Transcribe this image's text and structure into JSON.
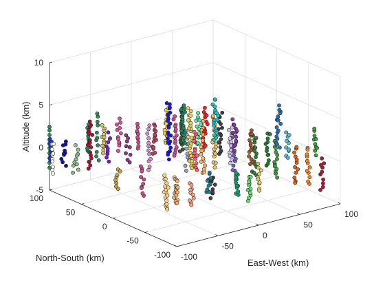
{
  "chart_data": {
    "type": "scatter3d",
    "title": "",
    "xlabel": "East-West (km)",
    "ylabel": "North-South (km)",
    "zlabel": "Altitude (km)",
    "xlim": [
      -100,
      100
    ],
    "ylim": [
      -100,
      100
    ],
    "zlim": [
      -5,
      10
    ],
    "xticks": [
      -100,
      -50,
      0,
      50,
      100
    ],
    "yticks": [
      -100,
      -50,
      0,
      50,
      100
    ],
    "zticks": [
      -5,
      0,
      5,
      10
    ],
    "grid": true,
    "box": "back-planes-only",
    "view": "matlab-default-3d",
    "marker": "filled circle with black edge",
    "note": "Each cluster is a vertical column of points, one color per cluster.",
    "clusters": [
      {
        "x": -60,
        "y": 90,
        "z": [
          -2.2,
          2.4
        ],
        "n": 10,
        "color": "#2e8b57"
      },
      {
        "x": -35,
        "y": 95,
        "z": [
          -1.5,
          1.0
        ],
        "n": 9,
        "color": "#1f3bd6"
      },
      {
        "x": -45,
        "y": 70,
        "z": [
          -2.8,
          0.8
        ],
        "n": 10,
        "color": "#ffffff"
      },
      {
        "x": -15,
        "y": 80,
        "z": [
          -2.0,
          0.8
        ],
        "n": 10,
        "color": "#1313a0"
      },
      {
        "x": -5,
        "y": 60,
        "z": [
          -2.4,
          0.6
        ],
        "n": 10,
        "color": "#8fbc8f"
      },
      {
        "x": 15,
        "y": 70,
        "z": [
          -0.5,
          2.8
        ],
        "n": 11,
        "color": "#0a9a6a"
      },
      {
        "x": 10,
        "y": 45,
        "z": [
          -1.5,
          4.0
        ],
        "n": 18,
        "color": "#b01030"
      },
      {
        "x": 25,
        "y": 60,
        "z": [
          -1.0,
          4.5
        ],
        "n": 11,
        "color": "#2e8b57"
      },
      {
        "x": 30,
        "y": 50,
        "z": [
          0.0,
          3.2
        ],
        "n": 12,
        "color": "#d4c36a"
      },
      {
        "x": 40,
        "y": 60,
        "z": [
          -1.2,
          2.0
        ],
        "n": 10,
        "color": "#7a1ed6"
      },
      {
        "x": 50,
        "y": 45,
        "z": [
          0.5,
          4.0
        ],
        "n": 12,
        "color": "#e05090"
      },
      {
        "x": 60,
        "y": 40,
        "z": [
          -1.0,
          2.5
        ],
        "n": 9,
        "color": "#8a3a8a"
      },
      {
        "x": 75,
        "y": 45,
        "z": [
          0.5,
          3.5
        ],
        "n": 10,
        "color": "#d04a88"
      },
      {
        "x": 85,
        "y": 30,
        "z": [
          -1.5,
          3.5
        ],
        "n": 12,
        "color": "#d090d0"
      },
      {
        "x": 90,
        "y": 20,
        "z": [
          0.5,
          4.0
        ],
        "n": 14,
        "color": "#c04060"
      },
      {
        "x": 105,
        "y": 15,
        "z": [
          2.0,
          6.0
        ],
        "n": 14,
        "color": "#ffd23f"
      },
      {
        "x": 115,
        "y": 10,
        "z": [
          0.5,
          5.0
        ],
        "n": 14,
        "color": "#c85090"
      },
      {
        "x": 130,
        "y": 5,
        "z": [
          -1.0,
          3.5
        ],
        "n": 10,
        "color": "#a0a0d0"
      },
      {
        "x": 100,
        "y": -10,
        "z": [
          1.0,
          7.5
        ],
        "n": 24,
        "color": "#1818e0"
      },
      {
        "x": 120,
        "y": -5,
        "z": [
          1.5,
          6.5
        ],
        "n": 18,
        "color": "#3a5a3a"
      },
      {
        "x": 135,
        "y": -15,
        "z": [
          -0.5,
          4.0
        ],
        "n": 16,
        "color": "#ff6060"
      },
      {
        "x": 150,
        "y": -10,
        "z": [
          2.0,
          6.5
        ],
        "n": 16,
        "color": "#ff2020"
      },
      {
        "x": 125,
        "y": -25,
        "z": [
          0.0,
          7.0
        ],
        "n": 26,
        "color": "#e8d050"
      },
      {
        "x": 140,
        "y": -30,
        "z": [
          -0.5,
          5.5
        ],
        "n": 20,
        "color": "#ffb060"
      },
      {
        "x": 160,
        "y": -20,
        "z": [
          0.0,
          6.0
        ],
        "n": 20,
        "color": "#e8c060"
      },
      {
        "x": 110,
        "y": -40,
        "z": [
          3.5,
          8.0
        ],
        "n": 16,
        "color": "#1a8a5a"
      },
      {
        "x": 130,
        "y": -45,
        "z": [
          3.5,
          7.0
        ],
        "n": 12,
        "color": "#60e0a0"
      },
      {
        "x": 160,
        "y": -45,
        "z": [
          2.0,
          7.0
        ],
        "n": 16,
        "color": "#404040"
      },
      {
        "x": 175,
        "y": -40,
        "z": [
          1.0,
          5.0
        ],
        "n": 14,
        "color": "#d0c0f0"
      },
      {
        "x": 185,
        "y": -25,
        "z": [
          -1.0,
          4.0
        ],
        "n": 14,
        "color": "#7060c0"
      },
      {
        "x": 150,
        "y": -55,
        "z": [
          4.0,
          9.0
        ],
        "n": 18,
        "color": "#20c0c0"
      },
      {
        "x": 175,
        "y": -60,
        "z": [
          3.0,
          6.5
        ],
        "n": 12,
        "color": "#8a3aa0"
      },
      {
        "x": 200,
        "y": -50,
        "z": [
          1.0,
          5.0
        ],
        "n": 14,
        "color": "#a05a30"
      },
      {
        "x": 210,
        "y": -35,
        "z": [
          -1.0,
          4.0
        ],
        "n": 16,
        "color": "#3a7a3a"
      },
      {
        "x": 225,
        "y": -45,
        "z": [
          0.5,
          4.5
        ],
        "n": 12,
        "color": "#208030"
      },
      {
        "x": 240,
        "y": -30,
        "z": [
          -1.5,
          3.0
        ],
        "n": 14,
        "color": "#40a040"
      },
      {
        "x": 235,
        "y": -60,
        "z": [
          3.0,
          8.0
        ],
        "n": 16,
        "color": "#2a70b0"
      },
      {
        "x": 250,
        "y": -50,
        "z": [
          1.5,
          4.5
        ],
        "n": 10,
        "color": "#50c0d0"
      },
      {
        "x": 265,
        "y": -40,
        "z": [
          -2.0,
          2.5
        ],
        "n": 12,
        "color": "#e06010"
      },
      {
        "x": 290,
        "y": -45,
        "z": [
          1.5,
          4.5
        ],
        "n": 10,
        "color": "#40a040"
      },
      {
        "x": 285,
        "y": -30,
        "z": [
          -2.5,
          2.0
        ],
        "n": 12,
        "color": "#ff8020"
      },
      {
        "x": 305,
        "y": -30,
        "z": [
          -3.0,
          0.5
        ],
        "n": 10,
        "color": "#b01838"
      },
      {
        "x": 40,
        "y": 20,
        "z": [
          -3.5,
          -1.0
        ],
        "n": 8,
        "color": "#c8a040"
      },
      {
        "x": 70,
        "y": 10,
        "z": [
          -4.0,
          -0.5
        ],
        "n": 10,
        "color": "#d04a88"
      },
      {
        "x": 95,
        "y": -15,
        "z": [
          -5.0,
          -1.0
        ],
        "n": 16,
        "color": "#ffd27f"
      },
      {
        "x": 110,
        "y": -10,
        "z": [
          -4.5,
          -1.5
        ],
        "n": 18,
        "color": "#f0b070"
      },
      {
        "x": 150,
        "y": -25,
        "z": [
          -3.0,
          -0.5
        ],
        "n": 10,
        "color": "#208090"
      },
      {
        "x": 185,
        "y": -35,
        "z": [
          -3.0,
          -0.5
        ],
        "n": 12,
        "color": "#10a060"
      },
      {
        "x": 200,
        "y": -45,
        "z": [
          -3.5,
          -0.5
        ],
        "n": 12,
        "color": "#60e070"
      },
      {
        "x": 215,
        "y": -40,
        "z": [
          -2.5,
          0.5
        ],
        "n": 10,
        "color": "#e0d060"
      },
      {
        "x": 160,
        "y": -10,
        "z": [
          -4.0,
          -1.5
        ],
        "n": 10,
        "color": "#404040"
      },
      {
        "x": 135,
        "y": 0,
        "z": [
          -5.0,
          -2.5
        ],
        "n": 10,
        "color": "#ffa080"
      }
    ]
  }
}
